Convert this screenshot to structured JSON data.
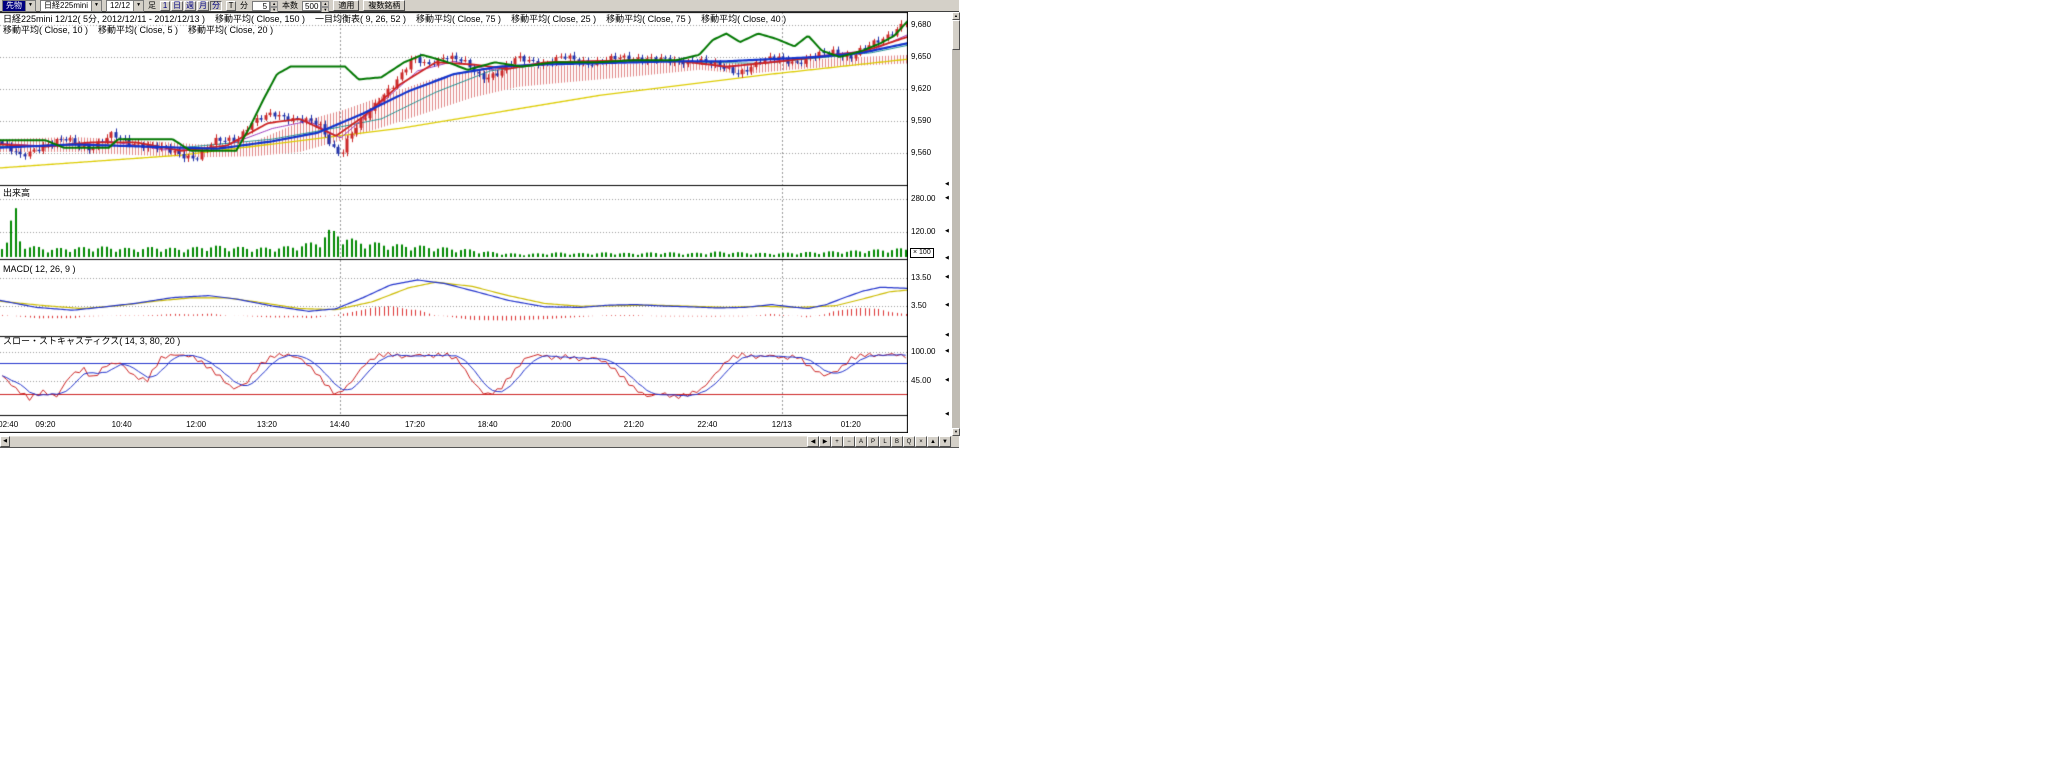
{
  "toolbar": {
    "market_value": "先物",
    "symbol_value": "日経225mini",
    "date_value": "12/12",
    "ashi_label": "足",
    "period_buttons": [
      "1",
      "日",
      "週",
      "月",
      "分"
    ],
    "tick_button": "T",
    "minute_label": "分",
    "minute_value": "5",
    "bars_label": "本数",
    "bars_value": "500",
    "apply_button": "適用",
    "multi_symbol_button": "複数銘柄"
  },
  "header": {
    "line1": [
      "日経225mini 12/12( 5分, 2012/12/11 - 2012/12/13 )",
      "移動平均( Close, 150 )",
      "一目均衡表( 9, 26, 52 )",
      "移動平均( Close, 75 )",
      "移動平均( Close, 25 )",
      "移動平均( Close, 75 )",
      "移動平均( Close, 40 )"
    ],
    "line2": [
      "移動平均( Close, 10 )",
      "移動平均( Close, 5 )",
      "移動平均( Close, 20 )"
    ]
  },
  "panes": {
    "volume_label": "出来高",
    "macd_label": "MACD( 12, 26, 9 )",
    "stoch_label": "スロー・ストキャスティクス( 14, 3, 80, 20 )",
    "volume_multiplier": "× 100"
  },
  "axis": {
    "price_ticks": [
      {
        "label": "9,680",
        "value": 9680
      },
      {
        "label": "9,650",
        "value": 9650
      },
      {
        "label": "9,620",
        "value": 9620
      },
      {
        "label": "9,590",
        "value": 9590
      },
      {
        "label": "9,560",
        "value": 9560
      }
    ],
    "volume_ticks": [
      {
        "label": "280.00",
        "value": 280
      },
      {
        "label": "120.00",
        "value": 120
      }
    ],
    "macd_ticks": [
      {
        "label": "13.50",
        "value": 13.5
      },
      {
        "label": "3.50",
        "value": 3.5
      }
    ],
    "stoch_ticks": [
      {
        "label": "100.00",
        "value": 100
      },
      {
        "label": "45.00",
        "value": 45
      }
    ]
  },
  "time_axis": [
    {
      "label": "02:40",
      "t": 0.009
    },
    {
      "label": "09:20",
      "t": 0.05
    },
    {
      "label": "10:40",
      "t": 0.134
    },
    {
      "label": "12:00",
      "t": 0.216
    },
    {
      "label": "13:20",
      "t": 0.294
    },
    {
      "label": "14:40",
      "t": 0.374
    },
    {
      "label": "17:20",
      "t": 0.457
    },
    {
      "label": "18:40",
      "t": 0.537
    },
    {
      "label": "20:00",
      "t": 0.618
    },
    {
      "label": "21:20",
      "t": 0.698
    },
    {
      "label": "22:40",
      "t": 0.779
    },
    {
      "label": "12/13",
      "t": 0.861
    },
    {
      "label": "01:20",
      "t": 0.937
    }
  ],
  "hscroll_buttons": [
    "◀",
    "▶",
    "+",
    "−",
    "A",
    "P",
    "L",
    "B",
    "Q",
    "×",
    "▲",
    "▼"
  ],
  "chart_data": {
    "type": "candlestick",
    "title": "日経225mini 12/12( 5分, 2012/12/11 - 2012/12/13 )",
    "num_bars": 200,
    "price_axis_range": [
      9528,
      9692
    ],
    "anchor_format": "[x_fraction_of_chart_width, value]",
    "close_path": [
      [
        0,
        9568
      ],
      [
        0.02,
        9556
      ],
      [
        0.045,
        9568
      ],
      [
        0.07,
        9572
      ],
      [
        0.095,
        9565
      ],
      [
        0.12,
        9576
      ],
      [
        0.14,
        9570
      ],
      [
        0.16,
        9568
      ],
      [
        0.19,
        9560
      ],
      [
        0.215,
        9556
      ],
      [
        0.235,
        9570
      ],
      [
        0.26,
        9574
      ],
      [
        0.275,
        9588
      ],
      [
        0.3,
        9596
      ],
      [
        0.33,
        9592
      ],
      [
        0.35,
        9586
      ],
      [
        0.365,
        9566
      ],
      [
        0.375,
        9560
      ],
      [
        0.385,
        9578
      ],
      [
        0.4,
        9590
      ],
      [
        0.42,
        9614
      ],
      [
        0.44,
        9632
      ],
      [
        0.455,
        9648
      ],
      [
        0.47,
        9642
      ],
      [
        0.49,
        9652
      ],
      [
        0.51,
        9645
      ],
      [
        0.53,
        9631
      ],
      [
        0.55,
        9636
      ],
      [
        0.57,
        9648
      ],
      [
        0.6,
        9645
      ],
      [
        0.62,
        9649
      ],
      [
        0.65,
        9645
      ],
      [
        0.68,
        9648
      ],
      [
        0.71,
        9650
      ],
      [
        0.74,
        9645
      ],
      [
        0.77,
        9648
      ],
      [
        0.79,
        9641
      ],
      [
        0.815,
        9636
      ],
      [
        0.84,
        9645
      ],
      [
        0.86,
        9650
      ],
      [
        0.88,
        9645
      ],
      [
        0.9,
        9650
      ],
      [
        0.92,
        9656
      ],
      [
        0.94,
        9650
      ],
      [
        0.96,
        9660
      ],
      [
        0.98,
        9671
      ],
      [
        1,
        9683
      ]
    ],
    "volume_path": [
      [
        0,
        70
      ],
      [
        0.008,
        90
      ],
      [
        0.013,
        290
      ],
      [
        0.02,
        90
      ],
      [
        0.03,
        55
      ],
      [
        0.05,
        40
      ],
      [
        0.08,
        45
      ],
      [
        0.11,
        50
      ],
      [
        0.14,
        42
      ],
      [
        0.17,
        48
      ],
      [
        0.2,
        40
      ],
      [
        0.23,
        55
      ],
      [
        0.26,
        48
      ],
      [
        0.29,
        44
      ],
      [
        0.32,
        52
      ],
      [
        0.35,
        75
      ],
      [
        0.36,
        130
      ],
      [
        0.375,
        115
      ],
      [
        0.39,
        80
      ],
      [
        0.41,
        70
      ],
      [
        0.43,
        62
      ],
      [
        0.46,
        55
      ],
      [
        0.49,
        45
      ],
      [
        0.52,
        35
      ],
      [
        0.55,
        20
      ],
      [
        0.58,
        14
      ],
      [
        0.61,
        22
      ],
      [
        0.64,
        18
      ],
      [
        0.67,
        22
      ],
      [
        0.7,
        18
      ],
      [
        0.73,
        24
      ],
      [
        0.76,
        18
      ],
      [
        0.79,
        26
      ],
      [
        0.82,
        22
      ],
      [
        0.85,
        18
      ],
      [
        0.88,
        22
      ],
      [
        0.91,
        26
      ],
      [
        0.94,
        30
      ],
      [
        0.97,
        36
      ],
      [
        1,
        42
      ]
    ],
    "ma150_green": [
      [
        0,
        9572
      ],
      [
        0.05,
        9572
      ],
      [
        0.07,
        9565
      ],
      [
        0.12,
        9565
      ],
      [
        0.13,
        9573
      ],
      [
        0.19,
        9573
      ],
      [
        0.21,
        9562
      ],
      [
        0.26,
        9562
      ],
      [
        0.275,
        9584
      ],
      [
        0.29,
        9610
      ],
      [
        0.305,
        9634
      ],
      [
        0.32,
        9641
      ],
      [
        0.38,
        9641
      ],
      [
        0.395,
        9629
      ],
      [
        0.42,
        9631
      ],
      [
        0.445,
        9645
      ],
      [
        0.465,
        9652
      ],
      [
        0.49,
        9646
      ],
      [
        0.515,
        9638
      ],
      [
        0.545,
        9645
      ],
      [
        0.575,
        9641
      ],
      [
        0.61,
        9645
      ],
      [
        0.655,
        9645
      ],
      [
        0.7,
        9647
      ],
      [
        0.745,
        9647
      ],
      [
        0.77,
        9652
      ],
      [
        0.785,
        9666
      ],
      [
        0.8,
        9672
      ],
      [
        0.815,
        9664
      ],
      [
        0.835,
        9672
      ],
      [
        0.855,
        9667
      ],
      [
        0.875,
        9660
      ],
      [
        0.89,
        9670
      ],
      [
        0.905,
        9656
      ],
      [
        0.925,
        9650
      ],
      [
        0.95,
        9656
      ],
      [
        0.97,
        9663
      ],
      [
        0.985,
        9670
      ],
      [
        1,
        9684
      ]
    ],
    "ma75_blue": [
      [
        0,
        9565
      ],
      [
        0.08,
        9568
      ],
      [
        0.16,
        9566
      ],
      [
        0.24,
        9564
      ],
      [
        0.3,
        9571
      ],
      [
        0.35,
        9579
      ],
      [
        0.4,
        9597
      ],
      [
        0.45,
        9618
      ],
      [
        0.5,
        9634
      ],
      [
        0.55,
        9641
      ],
      [
        0.6,
        9643
      ],
      [
        0.65,
        9644
      ],
      [
        0.7,
        9645
      ],
      [
        0.75,
        9646
      ],
      [
        0.8,
        9646
      ],
      [
        0.85,
        9648
      ],
      [
        0.9,
        9650
      ],
      [
        0.95,
        9654
      ],
      [
        1,
        9663
      ]
    ],
    "ma25_red": [
      [
        0,
        9568
      ],
      [
        0.05,
        9566
      ],
      [
        0.1,
        9570
      ],
      [
        0.15,
        9570
      ],
      [
        0.2,
        9562
      ],
      [
        0.25,
        9567
      ],
      [
        0.295,
        9588
      ],
      [
        0.33,
        9592
      ],
      [
        0.37,
        9576
      ],
      [
        0.4,
        9594
      ],
      [
        0.44,
        9624
      ],
      [
        0.48,
        9645
      ],
      [
        0.52,
        9643
      ],
      [
        0.56,
        9639
      ],
      [
        0.6,
        9645
      ],
      [
        0.65,
        9646
      ],
      [
        0.7,
        9647
      ],
      [
        0.75,
        9646
      ],
      [
        0.8,
        9641
      ],
      [
        0.85,
        9645
      ],
      [
        0.9,
        9650
      ],
      [
        0.95,
        9655
      ],
      [
        1,
        9669
      ]
    ],
    "ma_slow_yellow": [
      [
        0,
        9546
      ],
      [
        0.2,
        9558
      ],
      [
        0.44,
        9583
      ],
      [
        0.66,
        9614
      ],
      [
        0.85,
        9634
      ],
      [
        1,
        9648
      ]
    ],
    "ma20_purple": [
      [
        0,
        9569
      ],
      [
        0.06,
        9566
      ],
      [
        0.12,
        9571
      ],
      [
        0.18,
        9563
      ],
      [
        0.24,
        9564
      ],
      [
        0.3,
        9583
      ],
      [
        0.34,
        9590
      ],
      [
        0.375,
        9574
      ],
      [
        0.42,
        9607
      ],
      [
        0.46,
        9637
      ],
      [
        0.5,
        9646
      ],
      [
        0.54,
        9638
      ],
      [
        0.58,
        9643
      ],
      [
        0.64,
        9646
      ],
      [
        0.7,
        9647
      ],
      [
        0.76,
        9646
      ],
      [
        0.8,
        9640
      ],
      [
        0.86,
        9647
      ],
      [
        0.92,
        9653
      ],
      [
        0.96,
        9656
      ],
      [
        1,
        9671
      ]
    ],
    "ma40_teal": [
      [
        0,
        9566
      ],
      [
        0.1,
        9568
      ],
      [
        0.2,
        9565
      ],
      [
        0.3,
        9573
      ],
      [
        0.36,
        9582
      ],
      [
        0.42,
        9592
      ],
      [
        0.48,
        9617
      ],
      [
        0.54,
        9637
      ],
      [
        0.6,
        9643
      ],
      [
        0.66,
        9645
      ],
      [
        0.72,
        9646
      ],
      [
        0.78,
        9645
      ],
      [
        0.84,
        9644
      ],
      [
        0.9,
        9649
      ],
      [
        0.96,
        9654
      ],
      [
        1,
        9661
      ]
    ],
    "ichimoku_span_a": [
      [
        0,
        9573
      ],
      [
        0.08,
        9575
      ],
      [
        0.15,
        9572
      ],
      [
        0.22,
        9568
      ],
      [
        0.28,
        9571
      ],
      [
        0.33,
        9589
      ],
      [
        0.38,
        9601
      ],
      [
        0.42,
        9613
      ],
      [
        0.47,
        9628
      ],
      [
        0.52,
        9638
      ],
      [
        0.57,
        9640
      ],
      [
        0.62,
        9642
      ],
      [
        0.7,
        9644
      ],
      [
        0.77,
        9646
      ],
      [
        0.82,
        9644
      ],
      [
        0.87,
        9646
      ],
      [
        0.92,
        9649
      ],
      [
        1,
        9652
      ]
    ],
    "ichimoku_span_b": [
      [
        0,
        9561
      ],
      [
        0.08,
        9561
      ],
      [
        0.15,
        9558
      ],
      [
        0.22,
        9556
      ],
      [
        0.28,
        9557
      ],
      [
        0.33,
        9561
      ],
      [
        0.38,
        9573
      ],
      [
        0.42,
        9584
      ],
      [
        0.47,
        9598
      ],
      [
        0.52,
        9612
      ],
      [
        0.57,
        9622
      ],
      [
        0.62,
        9626
      ],
      [
        0.7,
        9632
      ],
      [
        0.77,
        9638
      ],
      [
        0.82,
        9634
      ],
      [
        0.87,
        9638
      ],
      [
        0.92,
        9641
      ],
      [
        1,
        9644
      ]
    ],
    "macd_line": [
      [
        0,
        5.5
      ],
      [
        0.04,
        3
      ],
      [
        0.08,
        2
      ],
      [
        0.11,
        3
      ],
      [
        0.15,
        4.5
      ],
      [
        0.19,
        6.5
      ],
      [
        0.23,
        7.2
      ],
      [
        0.26,
        6
      ],
      [
        0.3,
        3.5
      ],
      [
        0.34,
        1.6
      ],
      [
        0.37,
        2.5
      ],
      [
        0.4,
        6.5
      ],
      [
        0.43,
        11
      ],
      [
        0.46,
        12.8
      ],
      [
        0.49,
        11.5
      ],
      [
        0.52,
        9
      ],
      [
        0.56,
        5.5
      ],
      [
        0.6,
        3.2
      ],
      [
        0.64,
        3
      ],
      [
        0.67,
        3.8
      ],
      [
        0.7,
        4
      ],
      [
        0.73,
        3.5
      ],
      [
        0.76,
        3.2
      ],
      [
        0.79,
        2.8
      ],
      [
        0.82,
        3
      ],
      [
        0.85,
        4
      ],
      [
        0.87,
        3.2
      ],
      [
        0.89,
        2.6
      ],
      [
        0.91,
        4
      ],
      [
        0.93,
        6.5
      ],
      [
        0.95,
        8.8
      ],
      [
        0.97,
        10.2
      ],
      [
        1,
        9.8
      ]
    ],
    "macd_signal": [
      [
        0,
        5.2
      ],
      [
        0.05,
        3.6
      ],
      [
        0.09,
        2.6
      ],
      [
        0.13,
        3.6
      ],
      [
        0.17,
        5.2
      ],
      [
        0.21,
        6.4
      ],
      [
        0.25,
        6.4
      ],
      [
        0.29,
        4.6
      ],
      [
        0.33,
        2.6
      ],
      [
        0.37,
        2.2
      ],
      [
        0.41,
        5
      ],
      [
        0.45,
        10
      ],
      [
        0.48,
        12
      ],
      [
        0.52,
        10.5
      ],
      [
        0.56,
        7.2
      ],
      [
        0.6,
        4.4
      ],
      [
        0.64,
        3.4
      ],
      [
        0.68,
        3.6
      ],
      [
        0.72,
        3.8
      ],
      [
        0.76,
        3.4
      ],
      [
        0.8,
        3
      ],
      [
        0.84,
        3.4
      ],
      [
        0.88,
        3
      ],
      [
        0.92,
        3.6
      ],
      [
        0.95,
        6
      ],
      [
        0.98,
        8.6
      ],
      [
        1,
        9.2
      ]
    ],
    "stoch_k": [
      [
        0,
        55
      ],
      [
        0.015,
        30
      ],
      [
        0.03,
        12
      ],
      [
        0.045,
        25
      ],
      [
        0.06,
        15
      ],
      [
        0.075,
        55
      ],
      [
        0.09,
        68
      ],
      [
        0.1,
        50
      ],
      [
        0.115,
        75
      ],
      [
        0.13,
        80
      ],
      [
        0.145,
        55
      ],
      [
        0.16,
        45
      ],
      [
        0.175,
        88
      ],
      [
        0.19,
        95
      ],
      [
        0.21,
        92
      ],
      [
        0.225,
        75
      ],
      [
        0.24,
        55
      ],
      [
        0.255,
        30
      ],
      [
        0.27,
        40
      ],
      [
        0.285,
        75
      ],
      [
        0.3,
        93
      ],
      [
        0.315,
        95
      ],
      [
        0.33,
        88
      ],
      [
        0.345,
        65
      ],
      [
        0.36,
        35
      ],
      [
        0.37,
        18
      ],
      [
        0.385,
        40
      ],
      [
        0.4,
        75
      ],
      [
        0.415,
        93
      ],
      [
        0.43,
        96
      ],
      [
        0.445,
        90
      ],
      [
        0.46,
        95
      ],
      [
        0.475,
        92
      ],
      [
        0.49,
        96
      ],
      [
        0.505,
        85
      ],
      [
        0.52,
        45
      ],
      [
        0.535,
        18
      ],
      [
        0.55,
        28
      ],
      [
        0.565,
        60
      ],
      [
        0.58,
        90
      ],
      [
        0.595,
        95
      ],
      [
        0.61,
        88
      ],
      [
        0.625,
        92
      ],
      [
        0.64,
        85
      ],
      [
        0.655,
        90
      ],
      [
        0.67,
        78
      ],
      [
        0.685,
        55
      ],
      [
        0.7,
        30
      ],
      [
        0.715,
        15
      ],
      [
        0.73,
        22
      ],
      [
        0.745,
        14
      ],
      [
        0.76,
        20
      ],
      [
        0.775,
        30
      ],
      [
        0.79,
        60
      ],
      [
        0.805,
        88
      ],
      [
        0.82,
        95
      ],
      [
        0.835,
        90
      ],
      [
        0.85,
        94
      ],
      [
        0.865,
        88
      ],
      [
        0.88,
        92
      ],
      [
        0.895,
        70
      ],
      [
        0.91,
        55
      ],
      [
        0.925,
        65
      ],
      [
        0.94,
        88
      ],
      [
        0.955,
        95
      ],
      [
        0.97,
        93
      ],
      [
        0.985,
        96
      ],
      [
        1,
        92
      ]
    ],
    "stoch_levels": {
      "overbought": 80,
      "oversold": 20
    },
    "session_breaks_t": [
      0.374,
      0.861
    ],
    "colors": {
      "candle_up": "#cc2a2a",
      "candle_down": "#2233aa",
      "volume": "#008800",
      "ma_green": "#007700",
      "ma_blue": "#1133cc",
      "ma_red": "#cc2222",
      "ma_yellow": "#ddcc00",
      "ma_purple": "#9933bb",
      "ma_teal": "#209090",
      "cloud_hatch": "#e08888",
      "macd": "#2233cc",
      "macd_signal": "#ccbb00",
      "macd_hist": "#dd3333",
      "stoch_k": "#cc2222",
      "stoch_d": "#2233cc",
      "grid": "#999999"
    }
  }
}
